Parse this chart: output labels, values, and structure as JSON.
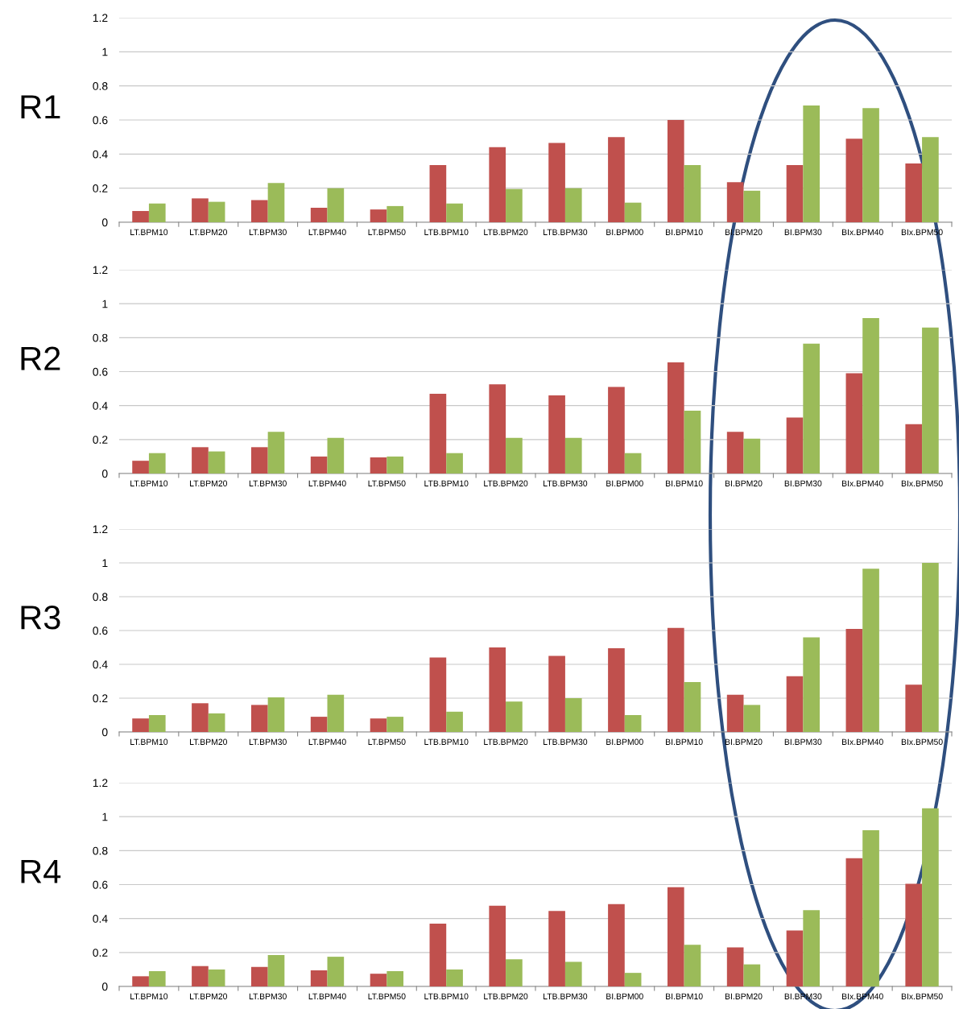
{
  "chart_data": [
    {
      "type": "bar",
      "title": "R1",
      "categories": [
        "LT.BPM10",
        "LT.BPM20",
        "LT.BPM30",
        "LT.BPM40",
        "LT.BPM50",
        "LTB.BPM10",
        "LTB.BPM20",
        "LTB.BPM30",
        "BI.BPM00",
        "BI.BPM10",
        "BI.BPM20",
        "BI.BPM30",
        "BIx.BPM40",
        "BIx.BPM50"
      ],
      "series": [
        {
          "color": "#c0504d",
          "values": [
            0.066,
            0.14,
            0.13,
            0.085,
            0.075,
            0.335,
            0.44,
            0.465,
            0.5,
            0.6,
            0.235,
            0.335,
            0.49,
            0.345
          ]
        },
        {
          "color": "#9bbb59",
          "values": [
            0.11,
            0.12,
            0.23,
            0.2,
            0.095,
            0.11,
            0.195,
            0.2,
            0.115,
            0.335,
            0.185,
            0.685,
            0.67,
            0.5
          ]
        }
      ],
      "ylim": [
        0,
        1.2
      ],
      "yticks": [
        0,
        0.2,
        0.4,
        0.6,
        0.8,
        1,
        1.2
      ],
      "grid": "y",
      "legend": false
    },
    {
      "type": "bar",
      "title": "R2",
      "categories": [
        "LT.BPM10",
        "LT.BPM20",
        "LT.BPM30",
        "LT.BPM40",
        "LT.BPM50",
        "LTB.BPM10",
        "LTB.BPM20",
        "LTB.BPM30",
        "BI.BPM00",
        "BI.BPM10",
        "BI.BPM20",
        "BI.BPM30",
        "BIx.BPM40",
        "BIx.BPM50"
      ],
      "series": [
        {
          "color": "#c0504d",
          "values": [
            0.075,
            0.155,
            0.155,
            0.1,
            0.095,
            0.47,
            0.525,
            0.46,
            0.51,
            0.655,
            0.245,
            0.33,
            0.59,
            0.29
          ]
        },
        {
          "color": "#9bbb59",
          "values": [
            0.12,
            0.13,
            0.245,
            0.21,
            0.1,
            0.12,
            0.21,
            0.21,
            0.12,
            0.37,
            0.205,
            0.765,
            0.915,
            0.86
          ]
        }
      ],
      "ylim": [
        0,
        1.2
      ],
      "yticks": [
        0,
        0.2,
        0.4,
        0.6,
        0.8,
        1,
        1.2
      ],
      "grid": "y",
      "legend": false
    },
    {
      "type": "bar",
      "title": "R3",
      "categories": [
        "LT.BPM10",
        "LT.BPM20",
        "LT.BPM30",
        "LT.BPM40",
        "LT.BPM50",
        "LTB.BPM10",
        "LTB.BPM20",
        "LTB.BPM30",
        "BI.BPM00",
        "BI.BPM10",
        "BI.BPM20",
        "BI.BPM30",
        "BIx.BPM40",
        "BIx.BPM50"
      ],
      "series": [
        {
          "color": "#c0504d",
          "values": [
            0.08,
            0.17,
            0.16,
            0.09,
            0.08,
            0.44,
            0.5,
            0.45,
            0.495,
            0.615,
            0.22,
            0.33,
            0.61,
            0.28
          ]
        },
        {
          "color": "#9bbb59",
          "values": [
            0.1,
            0.11,
            0.205,
            0.22,
            0.09,
            0.12,
            0.18,
            0.2,
            0.1,
            0.295,
            0.16,
            0.56,
            0.965,
            1.0
          ]
        }
      ],
      "ylim": [
        0,
        1.2
      ],
      "yticks": [
        0,
        0.2,
        0.4,
        0.6,
        0.8,
        1,
        1.2
      ],
      "grid": "y",
      "legend": false
    },
    {
      "type": "bar",
      "title": "R4",
      "categories": [
        "LT.BPM10",
        "LT.BPM20",
        "LT.BPM30",
        "LT.BPM40",
        "LT.BPM50",
        "LTB.BPM10",
        "LTB.BPM20",
        "LTB.BPM30",
        "BI.BPM00",
        "BI.BPM10",
        "BI.BPM20",
        "BI.BPM30",
        "BIx.BPM40",
        "BIx.BPM50"
      ],
      "series": [
        {
          "color": "#c0504d",
          "values": [
            0.06,
            0.12,
            0.115,
            0.095,
            0.075,
            0.37,
            0.475,
            0.445,
            0.485,
            0.585,
            0.23,
            0.33,
            0.755,
            0.605
          ]
        },
        {
          "color": "#9bbb59",
          "values": [
            0.09,
            0.1,
            0.185,
            0.175,
            0.09,
            0.1,
            0.16,
            0.145,
            0.08,
            0.245,
            0.13,
            0.45,
            0.92,
            1.05
          ]
        }
      ],
      "ylim": [
        0,
        1.2
      ],
      "yticks": [
        0,
        0.2,
        0.4,
        0.6,
        0.8,
        1,
        1.2
      ],
      "grid": "y",
      "legend": false
    }
  ]
}
